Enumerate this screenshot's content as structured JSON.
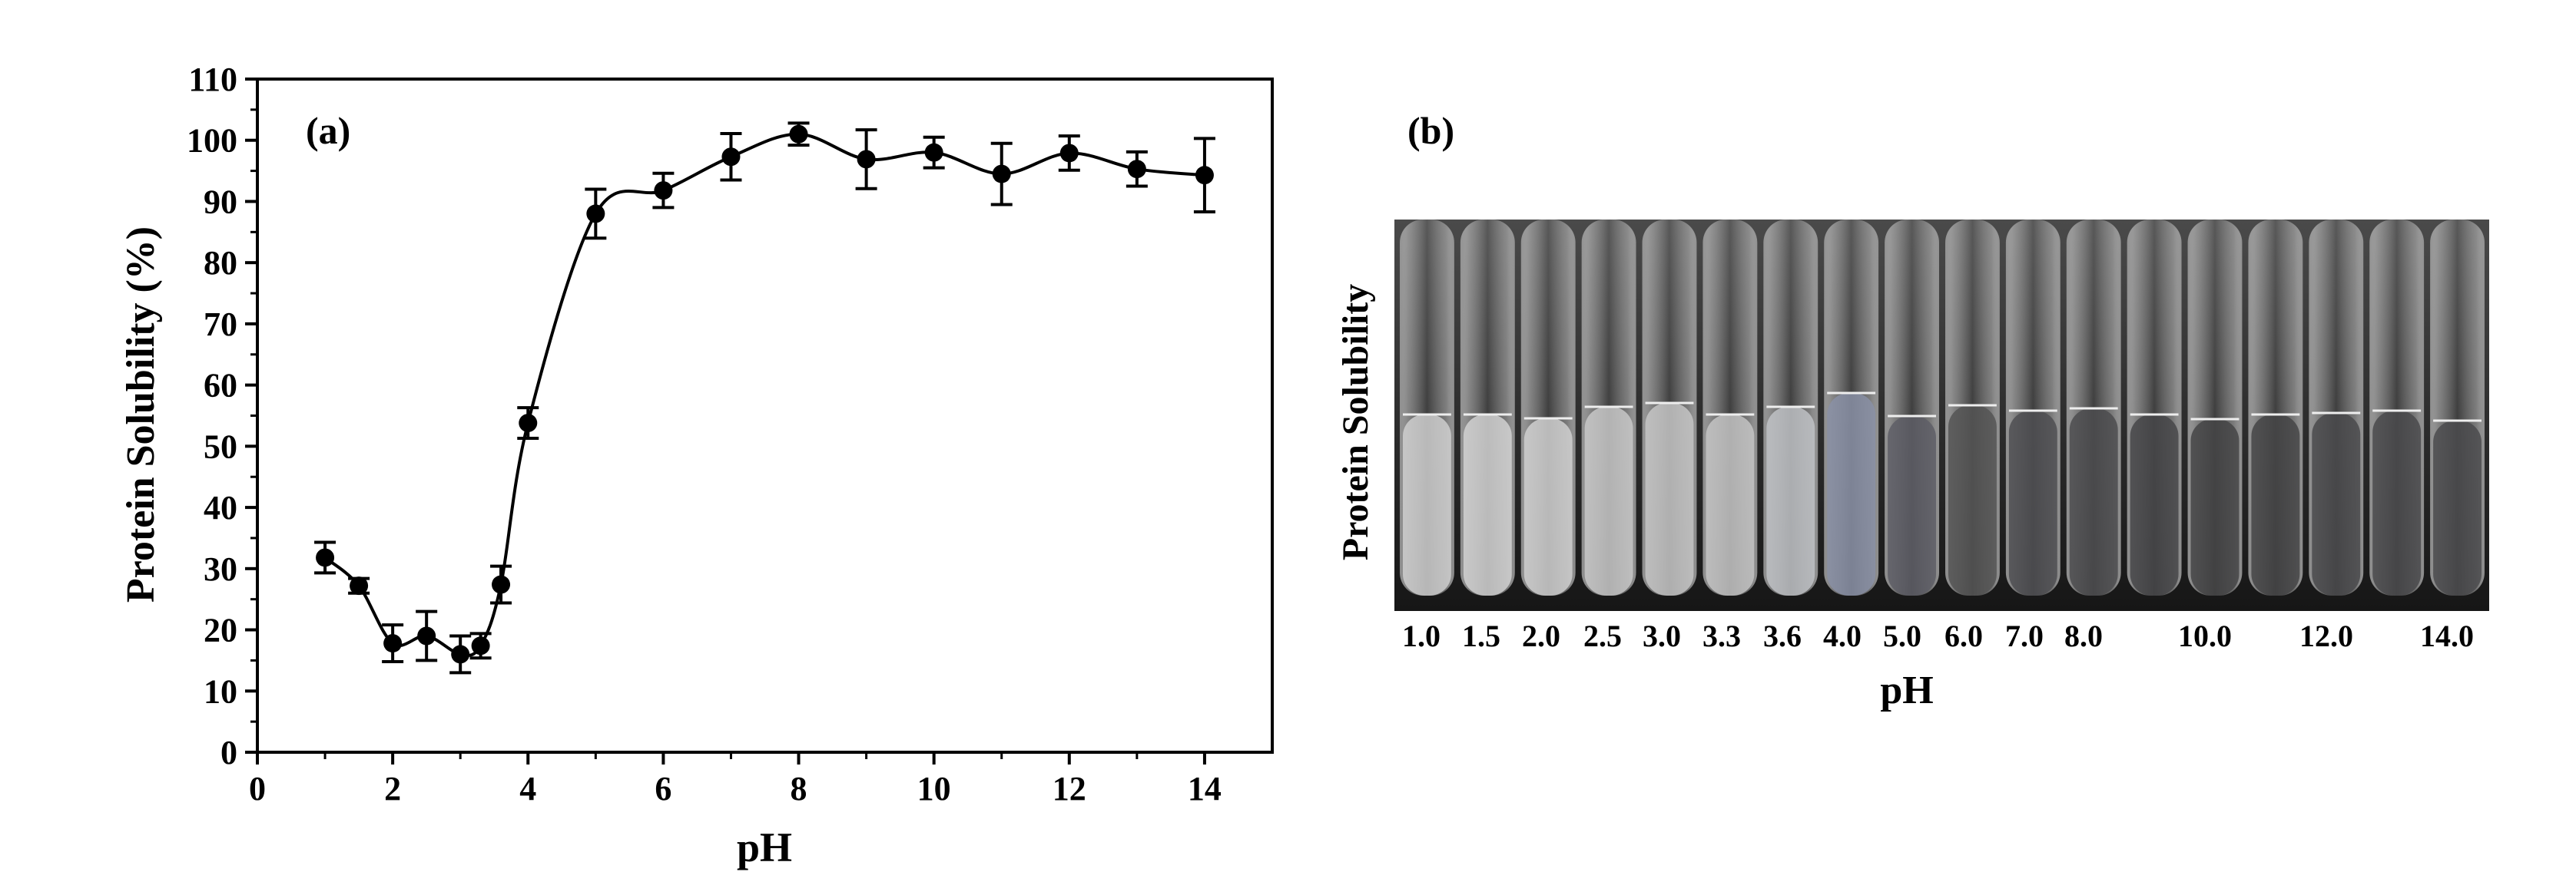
{
  "chart_data": [
    {
      "type": "line",
      "panel_label": "(a)",
      "xlabel": "pH",
      "ylabel": "Protein Solubility (%)",
      "xlim": [
        0,
        15
      ],
      "ylim": [
        0,
        110
      ],
      "x_ticks": [
        0,
        2,
        4,
        6,
        8,
        10,
        12,
        14
      ],
      "y_ticks": [
        0,
        10,
        20,
        30,
        40,
        50,
        60,
        70,
        80,
        90,
        100,
        110
      ],
      "grid": false,
      "series": [
        {
          "x": [
            1.0,
            1.5,
            2.0,
            2.5,
            3.0,
            3.3,
            3.6,
            4.0,
            5.0,
            6.0,
            7.0,
            8.0,
            9.0,
            10.0,
            11.0,
            12.0,
            13.0,
            14.0
          ],
          "y": [
            31.8,
            27.2,
            17.8,
            19.0,
            16.0,
            17.4,
            27.4,
            53.8,
            88.0,
            91.8,
            97.3,
            101.0,
            96.9,
            98.0,
            94.5,
            97.9,
            95.3,
            94.3
          ],
          "error": [
            2.5,
            1.2,
            3.0,
            4.0,
            3.0,
            2.0,
            3.0,
            2.5,
            4.0,
            2.8,
            3.8,
            1.8,
            4.8,
            2.5,
            5.0,
            2.8,
            2.8,
            6.0
          ]
        }
      ]
    },
    {
      "type": "image",
      "panel_label": "(b)",
      "ylabel": "Protein Solubility",
      "xlabel": "pH",
      "tube_labels": [
        "1.0",
        "1.5",
        "2.0",
        "2.5",
        "3.0",
        "3.3",
        "3.6",
        "4.0",
        "5.0",
        "6.0",
        "7.0",
        "8.0",
        "10.0",
        "12.0",
        "14.0"
      ]
    }
  ]
}
